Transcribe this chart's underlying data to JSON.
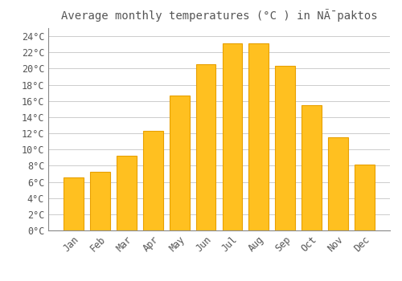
{
  "months": [
    "Jan",
    "Feb",
    "Mar",
    "Apr",
    "May",
    "Jun",
    "Jul",
    "Aug",
    "Sep",
    "Oct",
    "Nov",
    "Dec"
  ],
  "values": [
    6.5,
    7.2,
    9.2,
    12.3,
    16.7,
    20.5,
    23.1,
    23.1,
    20.3,
    15.5,
    11.5,
    8.1
  ],
  "bar_color": "#FFC020",
  "bar_edge_color": "#E8A000",
  "title": "Average monthly temperatures (°C ) in NÃ¯paktos",
  "ylim": [
    0,
    25
  ],
  "ytick_step": 2,
  "background_color": "#FFFFFF",
  "grid_color": "#CCCCCC",
  "title_fontsize": 10,
  "tick_fontsize": 8.5,
  "font_color": "#555555",
  "bar_width": 0.75
}
